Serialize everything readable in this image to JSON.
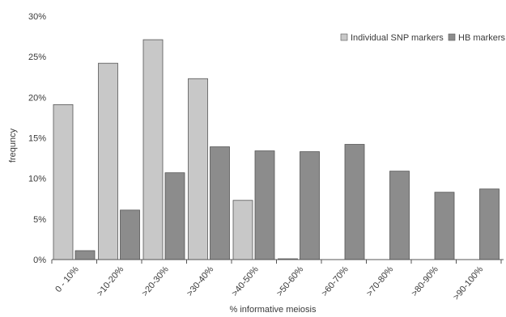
{
  "chart_data": {
    "type": "bar",
    "title": "",
    "xlabel": "% informative meiosis",
    "ylabel": "frequncy",
    "ylim": [
      0,
      30
    ],
    "yticks": [
      "0%",
      "5%",
      "10%",
      "15%",
      "20%",
      "25%",
      "30%"
    ],
    "grid": false,
    "legend_position": "top-right",
    "categories": [
      "0 - 10%",
      ">10-20%",
      ">20-30%",
      ">30-40%",
      ">40-50%",
      ">50-60%",
      ">60-70%",
      ">70-80%",
      ">80-90%",
      ">90-100%"
    ],
    "series": [
      {
        "name": "Individual SNP markers",
        "color": "#c8c8c8",
        "values": [
          19.1,
          24.2,
          27.1,
          22.3,
          7.3,
          0.1,
          0,
          0,
          0,
          0
        ]
      },
      {
        "name": "HB markers",
        "color": "#8c8c8c",
        "values": [
          1.1,
          6.1,
          10.7,
          13.9,
          13.4,
          13.3,
          14.2,
          10.9,
          8.3,
          8.7
        ]
      }
    ]
  }
}
